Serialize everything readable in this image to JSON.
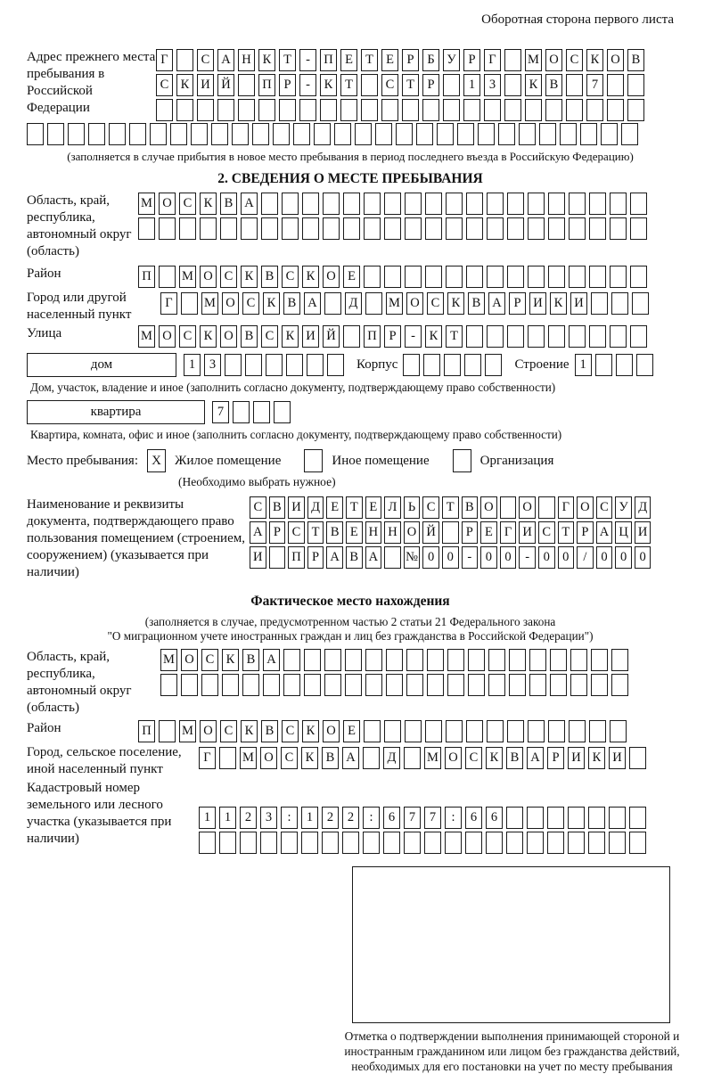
{
  "page": {
    "header_note": "Оборотная сторона первого листа"
  },
  "prev_address": {
    "label": "Адрес прежнего места пребывания в Российской Федерации",
    "row1": {
      "cells": "Г САНКТ-ПЕТЕРБУРГ МОСКОВ",
      "count": 24
    },
    "row2": {
      "cells": "СКИЙ ПР-КТ СТР 13 КВ 7",
      "count": 24
    },
    "row3": {
      "cells": "",
      "count": 24
    },
    "row4": {
      "cells": "",
      "count": 30
    },
    "note": "(заполняется в случае прибытия в новое место пребывания в период последнего въезда в Российскую Федерацию)"
  },
  "section2": {
    "title": "2. СВЕДЕНИЯ О МЕСТЕ ПРЕБЫВАНИЯ",
    "region": {
      "label": "Область, край, республика, автономный округ (область)",
      "row1": {
        "cells": "МОСКВА",
        "count": 25
      },
      "row2": {
        "cells": "",
        "count": 25
      }
    },
    "district": {
      "label": "Район",
      "row": {
        "cells": "П МОСКВСКОЕ",
        "count": 25
      }
    },
    "city": {
      "label": "Город или другой населенный пункт",
      "row": {
        "cells": "Г МОСКВА Д МОСКВАРИКИ",
        "count": 24
      }
    },
    "street": {
      "label": "Улица",
      "row": {
        "cells": "МОСКОВСКИЙ ПР-КТ",
        "count": 25
      }
    },
    "house": {
      "box_label": "дом",
      "row": {
        "cells": "13",
        "count": 8
      },
      "korpus_label": "Корпус",
      "korpus_row": {
        "cells": "",
        "count": 5
      },
      "stroenie_label": "Строение",
      "stroenie_row": {
        "cells": "1",
        "count": 4
      },
      "note": "Дом, участок, владение и иное (заполнить согласно документу, подтверждающему право собственности)"
    },
    "apartment": {
      "box_label": "квартира",
      "row": {
        "cells": "7",
        "count": 4
      },
      "note": "Квартира, комната, офис и иное (заполнить согласно документу, подтверждающему право собственности)"
    },
    "presence": {
      "label": "Место пребывания:",
      "options": [
        {
          "mark": "X",
          "label": "Жилое помещение"
        },
        {
          "mark": "",
          "label": "Иное помещение"
        },
        {
          "mark": "",
          "label": "Организация"
        }
      ],
      "note": "(Необходимо выбрать нужное)"
    },
    "document": {
      "label": "Наименование и реквизиты документа, подтверждающего право пользования помещением (строением, сооружением) (указывается при наличии)",
      "row1": {
        "cells": "СВИДЕТЕЛЬСТВО О ГОСУД",
        "count": 21
      },
      "row2": {
        "cells": "АРСТВЕННОЙ РЕГИСТРАЦИ",
        "count": 21
      },
      "row3": {
        "cells": "И ПРАВА №00-00-00/000",
        "count": 21
      }
    }
  },
  "actual_location": {
    "title": "Фактическое место нахождения",
    "note1": "(заполняется в случае, предусмотренном частью 2 статьи 21 Федерального закона",
    "note2": "\"О миграционном учете иностранных граждан и лиц без гражданства в Российской Федерации\")",
    "region": {
      "label": "Область, край, республика, автономный округ (область)",
      "row1": {
        "cells": "МОСКВА",
        "count": 23
      },
      "row2": {
        "cells": "",
        "count": 23
      }
    },
    "district": {
      "label": "Район",
      "row": {
        "cells": "П МОСКВСКОЕ",
        "count": 24
      }
    },
    "city": {
      "label": "Город, сельское поселение, иной населенный пункт",
      "row": {
        "cells": "Г МОСКВА Д МОСКВАРИКИ",
        "count": 22
      }
    },
    "cadastre": {
      "label": "Кадастровый номер земельного или лесного участка (указывается при наличии)",
      "row1": {
        "cells": "1123:122:677:66",
        "count": 22
      },
      "row2": {
        "cells": "",
        "count": 22
      }
    },
    "stamp_caption": "Отметка о подтверждении выполнения принимающей стороной и иностранным гражданином или лицом без гражданства действий, необходимых для его постановки на учет по месту пребывания"
  }
}
